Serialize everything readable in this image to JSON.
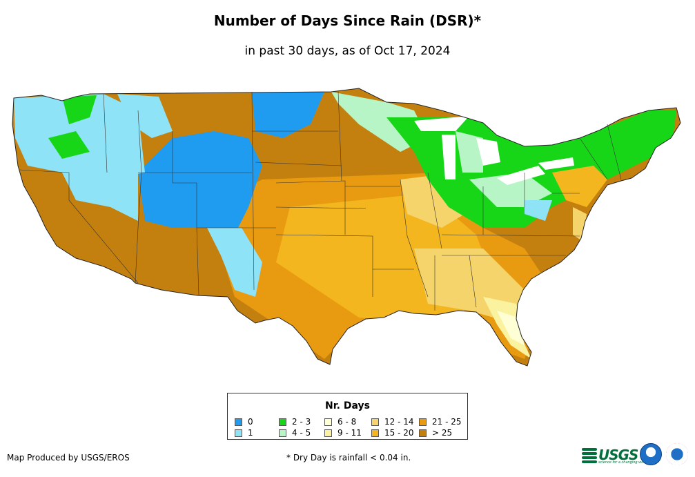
{
  "title": "Number of Days Since Rain (DSR)*",
  "subtitle": "in past 30 days, as of Oct 17, 2024",
  "legend": {
    "title": "Nr. Days",
    "items": [
      {
        "label": "0",
        "color": "#1f9bef"
      },
      {
        "label": "1",
        "color": "#8fe3f7"
      },
      {
        "label": "2 - 3",
        "color": "#17d617"
      },
      {
        "label": "4 - 5",
        "color": "#b7f5c6"
      },
      {
        "label": "6 - 8",
        "color": "#ffffd6"
      },
      {
        "label": "9 - 11",
        "color": "#fbf2a0"
      },
      {
        "label": "12 - 14",
        "color": "#f6d46c"
      },
      {
        "label": "15 - 20",
        "color": "#f3b61e"
      },
      {
        "label": "21 - 25",
        "color": "#e89a10"
      },
      {
        "label": "> 25",
        "color": "#c4800f"
      }
    ]
  },
  "credit": "Map Produced by USGS/EROS",
  "footnote": "* Dry Day is rainfall < 0.04 in.",
  "logos": {
    "usgs": "USGS",
    "usgs_tagline": "science for a changing world",
    "noaa": "noaa-logo",
    "nws": "nws-logo"
  }
}
